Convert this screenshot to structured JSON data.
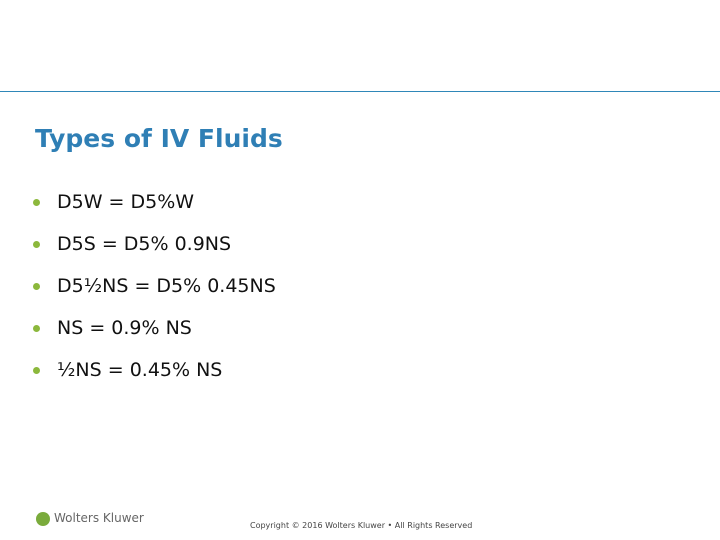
{
  "header": {
    "title": "Types of IV Fluids"
  },
  "bullets": [
    "D5W = D5%W",
    "D5S = D5% 0.9NS",
    "D5½NS = D5% 0.45NS",
    "NS = 0.9% NS",
    "½NS = 0.45% NS"
  ],
  "footer": {
    "logo": "Wolters Kluwer",
    "copyright": "Copyright © 2016 Wolters Kluwer • All Rights Reserved"
  }
}
